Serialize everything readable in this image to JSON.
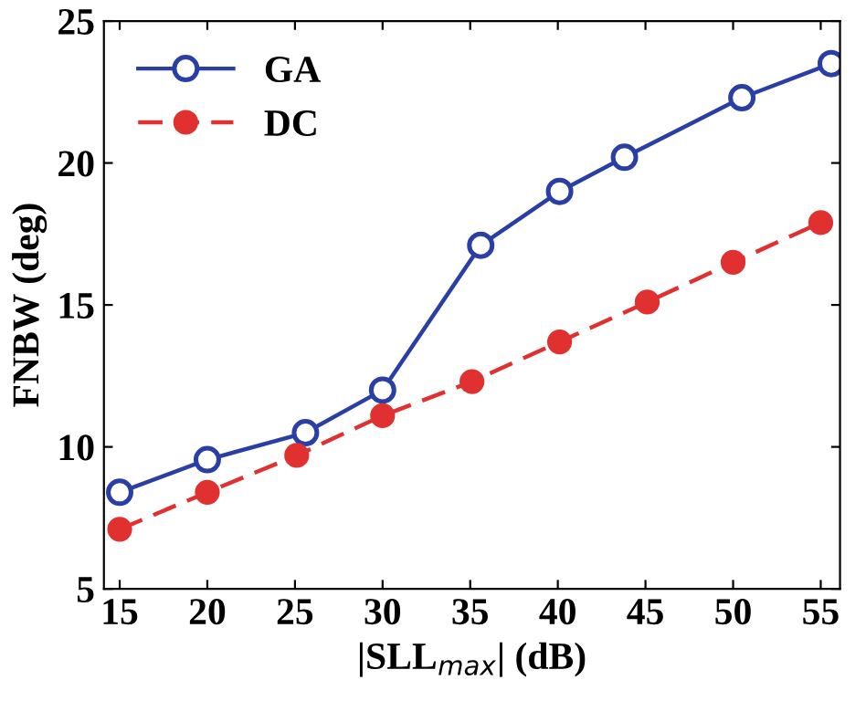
{
  "chart_data": {
    "type": "line",
    "xlabel": "|SLL$_{max}$| (dB)",
    "ylabel": "FNBW (deg)",
    "xlim": [
      14.1,
      56.1
    ],
    "ylim": [
      5,
      25
    ],
    "xticks": [
      15,
      20,
      25,
      30,
      35,
      40,
      45,
      50,
      55
    ],
    "yticks": [
      5,
      10,
      15,
      20,
      25
    ],
    "legend": "top left",
    "grid": false,
    "series": [
      {
        "name": "GA",
        "color": "#2a3fa6",
        "marker": "circle",
        "line_style": "solid",
        "x": [
          15,
          20,
          25.6,
          30,
          35.6,
          40.1,
          43.8,
          50.5,
          55.6
        ],
        "values": [
          8.4,
          9.55,
          10.5,
          12.0,
          17.1,
          19.0,
          20.2,
          22.3,
          23.5
        ]
      },
      {
        "name": "DC",
        "color": "#e03030",
        "marker": "circle",
        "line_style": "dashed",
        "x": [
          15,
          20,
          25.1,
          30,
          35.1,
          40.1,
          45.1,
          50,
          55
        ],
        "values": [
          7.1,
          8.4,
          9.7,
          11.1,
          12.3,
          13.7,
          15.1,
          16.5,
          17.9
        ]
      }
    ]
  }
}
